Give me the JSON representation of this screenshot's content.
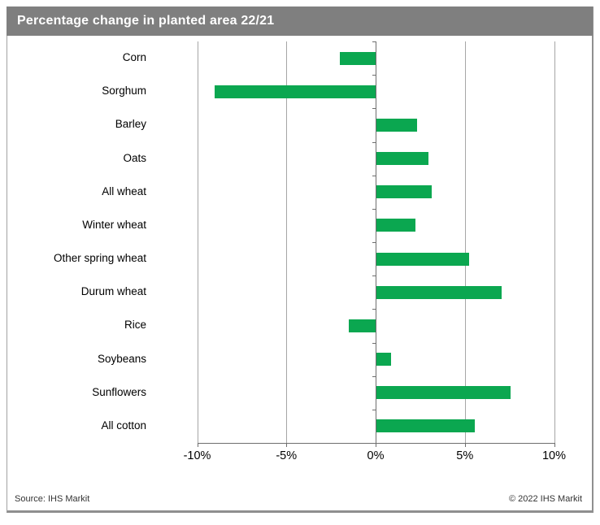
{
  "title": "Percentage change in planted area 22/21",
  "footer": {
    "source": "Source: IHS Markit",
    "copyright": "© 2022 IHS Markit"
  },
  "colors": {
    "bar_green": "#0ba750",
    "title_bg": "#7f7f7f",
    "title_text": "#ffffff",
    "gridline": "#a6a6a6",
    "axis": "#6e6e6e"
  },
  "chart_data": {
    "type": "bar",
    "orientation": "horizontal",
    "title": "Percentage change in planted area 22/21",
    "categories": [
      "Corn",
      "Sorghum",
      "Barley",
      "Oats",
      "All wheat",
      "Winter wheat",
      "Other spring wheat",
      "Durum wheat",
      "Rice",
      "Soybeans",
      "Sunflowers",
      "All cotton"
    ],
    "values": [
      -2.0,
      -9.0,
      2.3,
      2.9,
      3.1,
      2.2,
      5.2,
      7.0,
      -1.5,
      0.8,
      7.5,
      5.5
    ],
    "unit": "%",
    "xlim": [
      -10,
      10
    ],
    "x_ticks": [
      -10,
      -5,
      0,
      5,
      10
    ],
    "x_tick_labels": [
      "-10%",
      "-5%",
      "0%",
      "5%",
      "10%"
    ],
    "grid": "vertical-gridlines",
    "legend": "none",
    "xlabel": "",
    "ylabel": ""
  }
}
